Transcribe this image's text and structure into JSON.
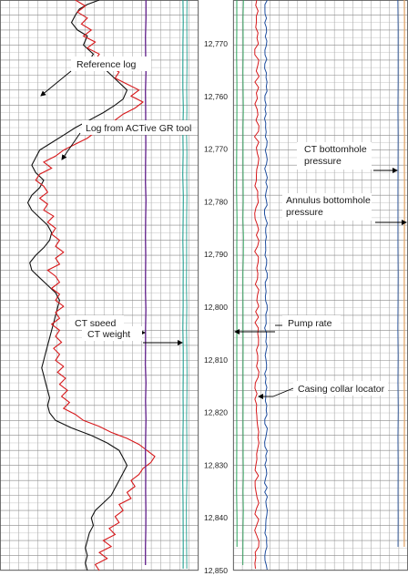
{
  "chart_data": {
    "type": "line",
    "depth_labels": [
      "12,770",
      "12,760",
      "12,770",
      "12,780",
      "12,790",
      "12,800",
      "12,810",
      "12,820",
      "12,830",
      "12,840",
      "12,850"
    ],
    "annotations": {
      "reference_log": "Reference log",
      "log_active_gr": "Log from ACTive GR tool",
      "ct_speed": "CT speed",
      "ct_weight": "CT weight",
      "ct_bottomhole_l1": "CT bottomhole",
      "ct_bottomhole_l2": "pressure",
      "annulus_l1": "Annulus bottomhole",
      "annulus_l2": "pressure",
      "pump_rate": "Pump rate",
      "ccl": "Casing collar locator"
    },
    "series": [
      {
        "key": "reference_log",
        "color": "#111111",
        "track": "left",
        "points": [
          [
            0,
            50
          ],
          [
            0.3,
            44
          ],
          [
            0.6,
            40
          ],
          [
            1,
            38
          ],
          [
            1.5,
            36
          ],
          [
            2,
            39
          ],
          [
            2.4,
            44
          ],
          [
            3,
            42
          ],
          [
            3.6,
            47
          ],
          [
            4,
            45
          ],
          [
            4.5,
            52
          ],
          [
            5,
            56
          ],
          [
            5.5,
            60
          ],
          [
            6,
            64
          ],
          [
            6.6,
            62
          ],
          [
            7,
            58
          ],
          [
            7.5,
            52
          ],
          [
            8,
            45
          ],
          [
            8.5,
            38
          ],
          [
            9,
            32
          ],
          [
            9.5,
            26
          ],
          [
            10,
            20
          ],
          [
            10.5,
            18
          ],
          [
            11,
            16
          ],
          [
            11.5,
            18
          ],
          [
            12,
            22
          ],
          [
            12.5,
            20
          ],
          [
            13,
            16
          ],
          [
            13.5,
            14
          ],
          [
            14,
            16
          ],
          [
            14.5,
            20
          ],
          [
            15,
            24
          ],
          [
            15.5,
            26
          ],
          [
            16,
            25
          ],
          [
            16.5,
            22
          ],
          [
            17,
            18
          ],
          [
            17.5,
            15
          ],
          [
            18,
            16
          ],
          [
            18.5,
            20
          ],
          [
            19,
            24
          ],
          [
            19.5,
            28
          ],
          [
            20,
            30
          ],
          [
            20.5,
            29
          ],
          [
            21,
            28
          ],
          [
            21.5,
            27
          ],
          [
            22,
            26
          ],
          [
            22.5,
            25
          ],
          [
            23,
            24
          ],
          [
            23.5,
            23
          ],
          [
            24,
            22
          ],
          [
            24.5,
            21
          ],
          [
            25,
            22
          ],
          [
            25.5,
            23
          ],
          [
            26,
            24
          ],
          [
            26.5,
            25
          ],
          [
            27,
            24
          ],
          [
            27.5,
            25
          ],
          [
            28,
            28
          ],
          [
            28.5,
            36
          ],
          [
            29,
            46
          ],
          [
            29.5,
            54
          ],
          [
            30,
            60
          ],
          [
            30.5,
            62
          ],
          [
            31,
            64
          ],
          [
            31.5,
            62
          ],
          [
            32,
            60
          ],
          [
            32.5,
            58
          ],
          [
            33,
            56
          ],
          [
            33.5,
            52
          ],
          [
            34,
            48
          ],
          [
            34.5,
            46
          ],
          [
            35,
            47
          ],
          [
            35.5,
            45
          ],
          [
            36,
            44
          ],
          [
            36.5,
            43
          ],
          [
            37,
            44
          ],
          [
            37.5,
            43
          ],
          [
            38,
            44
          ]
        ]
      },
      {
        "key": "log_active_gr",
        "color": "#d7191c",
        "track": "left",
        "points": [
          [
            0,
            38
          ],
          [
            0.4,
            43
          ],
          [
            0.8,
            39
          ],
          [
            1.2,
            44
          ],
          [
            1.6,
            41
          ],
          [
            2,
            46
          ],
          [
            2.4,
            42
          ],
          [
            2.8,
            48
          ],
          [
            3.2,
            44
          ],
          [
            3.6,
            50
          ],
          [
            4,
            48
          ],
          [
            4.4,
            55
          ],
          [
            4.8,
            60
          ],
          [
            5.2,
            58
          ],
          [
            5.6,
            64
          ],
          [
            6,
            70
          ],
          [
            6.4,
            66
          ],
          [
            6.8,
            72
          ],
          [
            7.2,
            68
          ],
          [
            7.6,
            62
          ],
          [
            8,
            58
          ],
          [
            8.4,
            54
          ],
          [
            8.8,
            48
          ],
          [
            9.2,
            44
          ],
          [
            9.6,
            38
          ],
          [
            10,
            32
          ],
          [
            10.4,
            28
          ],
          [
            10.8,
            22
          ],
          [
            11.2,
            26
          ],
          [
            11.6,
            20
          ],
          [
            12,
            18
          ],
          [
            12.4,
            22
          ],
          [
            12.8,
            24
          ],
          [
            13.2,
            20
          ],
          [
            13.6,
            24
          ],
          [
            14,
            22
          ],
          [
            14.4,
            27
          ],
          [
            14.8,
            24
          ],
          [
            15.2,
            28
          ],
          [
            15.6,
            26
          ],
          [
            16,
            30
          ],
          [
            16.4,
            28
          ],
          [
            16.8,
            32
          ],
          [
            17.2,
            28
          ],
          [
            17.6,
            30
          ],
          [
            18,
            24
          ],
          [
            18.4,
            28
          ],
          [
            18.8,
            30
          ],
          [
            19.2,
            26
          ],
          [
            19.6,
            30
          ],
          [
            20,
            28
          ],
          [
            20.4,
            32
          ],
          [
            20.8,
            28
          ],
          [
            21.2,
            30
          ],
          [
            21.6,
            26
          ],
          [
            22,
            30
          ],
          [
            22.4,
            28
          ],
          [
            22.8,
            31
          ],
          [
            23.2,
            27
          ],
          [
            23.6,
            30
          ],
          [
            24,
            28
          ],
          [
            24.4,
            32
          ],
          [
            24.8,
            29
          ],
          [
            25.2,
            33
          ],
          [
            25.6,
            30
          ],
          [
            26,
            34
          ],
          [
            26.4,
            31
          ],
          [
            26.8,
            35
          ],
          [
            27.2,
            32
          ],
          [
            27.6,
            38
          ],
          [
            28,
            42
          ],
          [
            28.4,
            50
          ],
          [
            28.8,
            56
          ],
          [
            29.2,
            64
          ],
          [
            29.6,
            70
          ],
          [
            30,
            74
          ],
          [
            30.4,
            78
          ],
          [
            30.8,
            76
          ],
          [
            31.2,
            72
          ],
          [
            31.6,
            70
          ],
          [
            32,
            66
          ],
          [
            32.4,
            68
          ],
          [
            32.8,
            64
          ],
          [
            33.2,
            66
          ],
          [
            33.6,
            60
          ],
          [
            34,
            62
          ],
          [
            34.4,
            58
          ],
          [
            34.8,
            60
          ],
          [
            35.2,
            55
          ],
          [
            35.6,
            58
          ],
          [
            36,
            52
          ],
          [
            36.4,
            56
          ],
          [
            36.8,
            50
          ],
          [
            37.2,
            54
          ],
          [
            37.6,
            48
          ],
          [
            38,
            50
          ]
        ]
      }
    ]
  }
}
